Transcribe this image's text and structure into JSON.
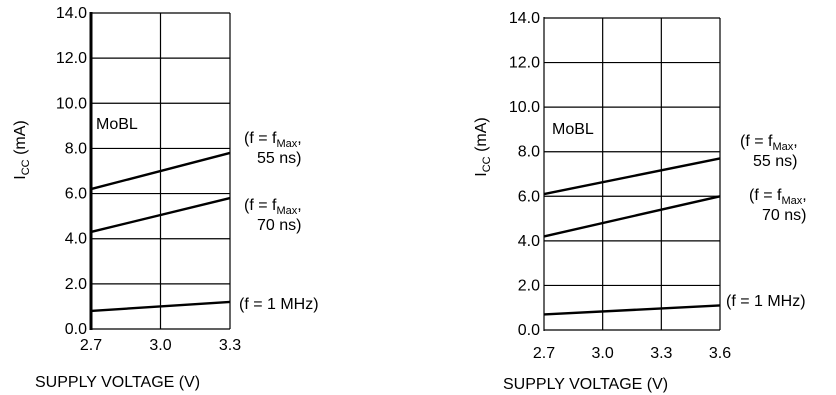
{
  "chart_data": [
    {
      "type": "line",
      "title": "",
      "xlabel": "SUPPLY VOLTAGE (V)",
      "ylabel": {
        "main": "I",
        "sub": "CC",
        "unit": " (mA)"
      },
      "xlim": [
        2.7,
        3.3
      ],
      "ylim": [
        0,
        14
      ],
      "x_ticks": [
        2.7,
        3.0,
        3.3
      ],
      "x_tick_labels": [
        "2.7",
        "3.0",
        "3.3"
      ],
      "y_ticks": [
        0,
        2,
        4,
        6,
        8,
        10,
        12,
        14
      ],
      "y_tick_labels": [
        "0.0",
        "2.0",
        "4.0",
        "6.0",
        "8.0",
        "10.0",
        "12.0",
        "14.0"
      ],
      "grid": true,
      "annotation": "MoBL",
      "series": [
        {
          "label_lines": [
            [
              "(f = f",
              "Max",
              ","
            ],
            [
              "55 ns)"
            ]
          ],
          "x": [
            2.7,
            3.3
          ],
          "y": [
            6.2,
            7.8
          ]
        },
        {
          "label_lines": [
            [
              "(f = f",
              "Max",
              ","
            ],
            [
              "70 ns)"
            ]
          ],
          "x": [
            2.7,
            3.3
          ],
          "y": [
            4.3,
            5.8
          ]
        },
        {
          "label_lines": [
            [
              "(f = 1 MHz)"
            ]
          ],
          "x": [
            2.7,
            3.3
          ],
          "y": [
            0.8,
            1.2
          ]
        }
      ]
    },
    {
      "type": "line",
      "title": "",
      "xlabel": "SUPPLY VOLTAGE (V)",
      "ylabel": {
        "main": "I",
        "sub": "CC",
        "unit": " (mA)"
      },
      "xlim": [
        2.7,
        3.6
      ],
      "ylim": [
        0,
        14
      ],
      "x_ticks": [
        2.7,
        3.0,
        3.3,
        3.6
      ],
      "x_tick_labels": [
        "2.7",
        "3.0",
        "3.3",
        "3.6"
      ],
      "y_ticks": [
        0,
        2,
        4,
        6,
        8,
        10,
        12,
        14
      ],
      "y_tick_labels": [
        "0.0",
        "2.0",
        "4.0",
        "6.0",
        "8.0",
        "10.0",
        "12.0",
        "14.0"
      ],
      "grid": true,
      "annotation": "MoBL",
      "series": [
        {
          "label_lines": [
            [
              "(f = f",
              "Max",
              ","
            ],
            [
              "55 ns)"
            ]
          ],
          "x": [
            2.7,
            3.6
          ],
          "y": [
            6.1,
            7.7
          ]
        },
        {
          "label_lines": [
            [
              "(f = f",
              "Max",
              ","
            ],
            [
              "70 ns)"
            ]
          ],
          "x": [
            2.7,
            3.6
          ],
          "y": [
            4.2,
            6.0
          ]
        },
        {
          "label_lines": [
            [
              "(f = 1 MHz)"
            ]
          ],
          "x": [
            2.7,
            3.6
          ],
          "y": [
            0.7,
            1.1
          ]
        }
      ]
    }
  ]
}
